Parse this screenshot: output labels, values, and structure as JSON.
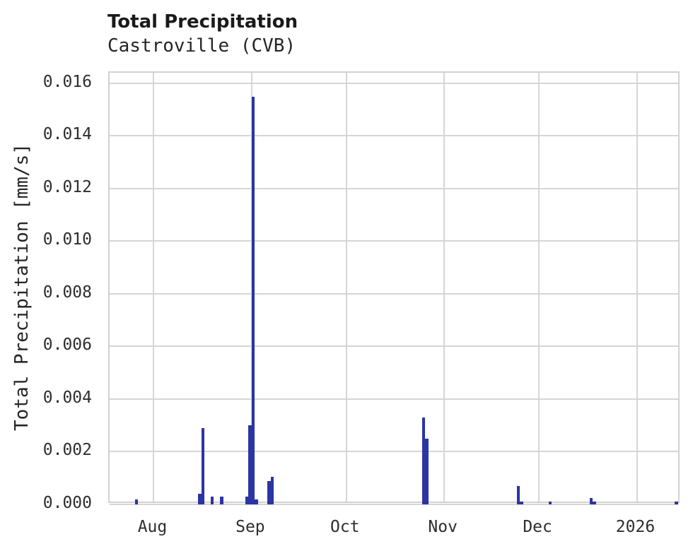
{
  "chart_data": {
    "type": "bar",
    "title": "Total Precipitation",
    "subtitle": "Castroville (CVB)",
    "ylabel": "Total Precipitation [mm/s]",
    "xlabel": "",
    "ylim": [
      0,
      0.0164
    ],
    "grid": true,
    "legend": "none",
    "colors": {
      "bar": "#2b35a3",
      "grid": "#d6d6d6",
      "plot_border": "#d2d2d2",
      "title_text": "#1a1a1a",
      "tick_text": "#2e2e2e",
      "background": "#ffffff"
    },
    "x_axis": {
      "kind": "time",
      "start": "2025-07-18",
      "end": "2026-01-15",
      "ticks": [
        {
          "date": "2025-08-01",
          "label": "Aug"
        },
        {
          "date": "2025-09-01",
          "label": "Sep"
        },
        {
          "date": "2025-10-01",
          "label": "Oct"
        },
        {
          "date": "2025-11-01",
          "label": "Nov"
        },
        {
          "date": "2025-12-01",
          "label": "Dec"
        },
        {
          "date": "2026-01-01",
          "label": "2026"
        }
      ]
    },
    "y_axis": {
      "ticks": [
        {
          "value": 0.0,
          "label": "0.000"
        },
        {
          "value": 0.002,
          "label": "0.002"
        },
        {
          "value": 0.004,
          "label": "0.004"
        },
        {
          "value": 0.006,
          "label": "0.006"
        },
        {
          "value": 0.008,
          "label": "0.008"
        },
        {
          "value": 0.01,
          "label": "0.010"
        },
        {
          "value": 0.012,
          "label": "0.012"
        },
        {
          "value": 0.014,
          "label": "0.014"
        },
        {
          "value": 0.016,
          "label": "0.016"
        }
      ]
    },
    "bar_width_days": 1,
    "bars": [
      {
        "date": "2025-07-26",
        "value": 0.0002
      },
      {
        "date": "2025-08-15",
        "value": 0.0004
      },
      {
        "date": "2025-08-16",
        "value": 0.0029
      },
      {
        "date": "2025-08-19",
        "value": 0.0003
      },
      {
        "date": "2025-08-22",
        "value": 0.0003
      },
      {
        "date": "2025-08-30",
        "value": 0.0003
      },
      {
        "date": "2025-08-31",
        "value": 0.003
      },
      {
        "date": "2025-09-01",
        "value": 0.0155
      },
      {
        "date": "2025-09-02",
        "value": 0.0002
      },
      {
        "date": "2025-09-06",
        "value": 0.0009
      },
      {
        "date": "2025-09-07",
        "value": 0.00105
      },
      {
        "date": "2025-10-25",
        "value": 0.0033
      },
      {
        "date": "2025-10-26",
        "value": 0.0025
      },
      {
        "date": "2025-11-24",
        "value": 0.0007
      },
      {
        "date": "2025-11-25",
        "value": 0.0001
      },
      {
        "date": "2025-12-04",
        "value": 0.0001
      },
      {
        "date": "2025-12-17",
        "value": 0.00025
      },
      {
        "date": "2025-12-18",
        "value": 0.0001
      },
      {
        "date": "2026-01-13",
        "value": 0.0001
      }
    ]
  }
}
